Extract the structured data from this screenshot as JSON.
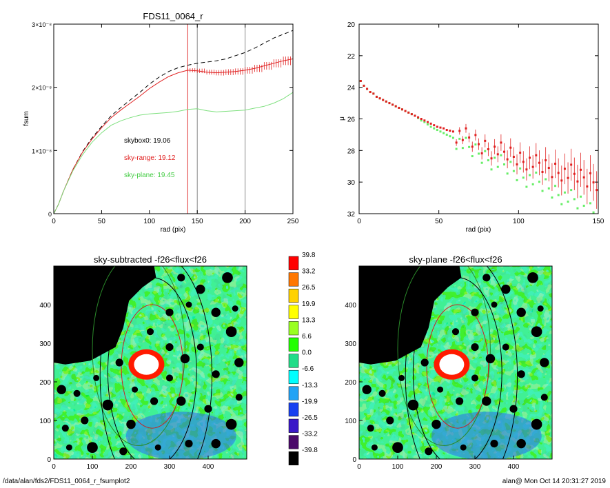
{
  "footer": {
    "path": "/data/alan/fds2/FDS11_0064_r_fsumplot2",
    "stamp": "alan@  Mon Oct 14 20:31:27 2019"
  },
  "colorbar": {
    "labels": [
      "39.8",
      "33.2",
      "26.5",
      "19.9",
      "13.3",
      "6.6",
      "0.0",
      "-6.6",
      "-13.3",
      "-19.9",
      "-26.5",
      "-33.2",
      "-39.8"
    ],
    "colors": [
      "#ff0000",
      "#ff7700",
      "#ffd200",
      "#ffff00",
      "#99ff22",
      "#22ff00",
      "#22dd88",
      "#00ffff",
      "#22a3f5",
      "#1840f0",
      "#3a18c8",
      "#4a0a6a",
      "#000000"
    ]
  },
  "chart_data": [
    {
      "type": "line",
      "title": "FDS11_0064_r",
      "xlabel": "rad (pix)",
      "ylabel": "fsum",
      "xlim": [
        0,
        250
      ],
      "ylim": [
        0,
        3e-08
      ],
      "xticks": [
        0,
        50,
        100,
        150,
        200,
        250
      ],
      "ytick_labels": [
        {
          "value": 0,
          "label": "0"
        },
        {
          "value": 1e-08,
          "label": "1×10⁻⁸"
        },
        {
          "value": 2e-08,
          "label": "2×10⁻⁸"
        },
        {
          "value": 3e-08,
          "label": "3×10⁻⁸"
        }
      ],
      "vlines": [
        {
          "x": 140,
          "color": "#e03030"
        },
        {
          "x": 150,
          "color": "#888888"
        },
        {
          "x": 200,
          "color": "#888888"
        }
      ],
      "annotations": [
        {
          "text": "skybox0: 19.06",
          "color": "#000000"
        },
        {
          "text": "sky-range: 19.12",
          "color": "#e02020"
        },
        {
          "text": "sky-plane: 19.45",
          "color": "#44cc44"
        }
      ],
      "series": [
        {
          "color": "#000000",
          "dash": true,
          "x": [
            0,
            5,
            10,
            20,
            30,
            40,
            50,
            60,
            70,
            80,
            90,
            100,
            110,
            120,
            130,
            140,
            150,
            160,
            170,
            180,
            190,
            200,
            210,
            220,
            230,
            240,
            250
          ],
          "y": [
            0,
            1.5e-09,
            3.5e-09,
            7e-09,
            9.8e-09,
            1.2e-08,
            1.38e-08,
            1.55e-08,
            1.68e-08,
            1.8e-08,
            1.92e-08,
            2.05e-08,
            2.16e-08,
            2.25e-08,
            2.31e-08,
            2.35e-08,
            2.38e-08,
            2.4e-08,
            2.42e-08,
            2.45e-08,
            2.5e-08,
            2.55e-08,
            2.62e-08,
            2.7e-08,
            2.78e-08,
            2.84e-08,
            2.9e-08
          ]
        },
        {
          "color": "#e02020",
          "errorbars": true,
          "x": [
            0,
            5,
            10,
            20,
            30,
            40,
            50,
            60,
            70,
            80,
            90,
            100,
            110,
            120,
            130,
            140,
            150,
            160,
            170,
            180,
            190,
            200,
            210,
            220,
            230,
            240,
            250
          ],
          "y": [
            0,
            1.5e-09,
            3.5e-09,
            7e-09,
            9.7e-09,
            1.18e-08,
            1.36e-08,
            1.52e-08,
            1.64e-08,
            1.75e-08,
            1.86e-08,
            1.98e-08,
            2.08e-08,
            2.17e-08,
            2.23e-08,
            2.27e-08,
            2.26e-08,
            2.24e-08,
            2.23e-08,
            2.24e-08,
            2.25e-08,
            2.27e-08,
            2.3e-08,
            2.34e-08,
            2.38e-08,
            2.42e-08,
            2.45e-08
          ]
        },
        {
          "color": "#7ee07e",
          "x": [
            0,
            5,
            10,
            20,
            30,
            40,
            50,
            60,
            70,
            80,
            90,
            100,
            110,
            120,
            130,
            140,
            150,
            160,
            170,
            180,
            190,
            200,
            210,
            220,
            230,
            240,
            250
          ],
          "y": [
            0,
            1.5e-09,
            3.5e-09,
            6.8e-09,
            9.3e-09,
            1.13e-08,
            1.28e-08,
            1.4e-08,
            1.47e-08,
            1.52e-08,
            1.56e-08,
            1.58e-08,
            1.59e-08,
            1.6e-08,
            1.62e-08,
            1.65e-08,
            1.66e-08,
            1.63e-08,
            1.61e-08,
            1.62e-08,
            1.63e-08,
            1.64e-08,
            1.67e-08,
            1.7e-08,
            1.75e-08,
            1.82e-08,
            1.92e-08
          ]
        }
      ]
    },
    {
      "type": "scatter",
      "xlabel": "rad (pix)",
      "ylabel": "μ",
      "xlim": [
        0,
        150
      ],
      "ylim": [
        32,
        20
      ],
      "xticks": [
        0,
        50,
        100,
        150
      ],
      "yticks": [
        20,
        22,
        24,
        26,
        28,
        30,
        32
      ],
      "series": [
        {
          "color": "#e02020",
          "errorbars": true,
          "x": [
            1,
            3,
            5,
            7,
            9,
            11,
            13,
            15,
            17,
            19,
            21,
            23,
            25,
            27,
            29,
            31,
            33,
            35,
            37,
            39,
            41,
            43,
            45,
            47,
            49,
            51,
            53,
            55,
            57,
            59,
            61,
            63,
            65,
            67,
            69,
            71,
            73,
            75,
            77,
            79,
            81,
            83,
            85,
            87,
            89,
            91,
            93,
            95,
            97,
            99,
            101,
            103,
            105,
            107,
            109,
            111,
            113,
            115,
            117,
            119,
            121,
            123,
            125,
            127,
            129,
            131,
            133,
            135,
            137,
            139,
            141,
            143,
            145,
            147,
            149
          ],
          "y": [
            23.6,
            23.9,
            24.1,
            24.3,
            24.4,
            24.6,
            24.7,
            24.8,
            24.9,
            25.0,
            25.1,
            25.2,
            25.3,
            25.4,
            25.5,
            25.6,
            25.7,
            25.8,
            25.9,
            26.0,
            26.1,
            26.2,
            26.3,
            26.4,
            26.5,
            26.55,
            26.6,
            26.7,
            26.75,
            26.8,
            26.9,
            27.0,
            27.1,
            27.2,
            27.3,
            27.4,
            27.5,
            27.6,
            27.7,
            27.75,
            27.8,
            27.9,
            28.0,
            28.0,
            28.1,
            28.2,
            28.2,
            28.3,
            28.4,
            28.4,
            28.5,
            28.6,
            28.6,
            28.7,
            28.8,
            28.9,
            28.9,
            29.0,
            29.1,
            29.1,
            29.2,
            29.2,
            29.3,
            29.3,
            29.4,
            29.5,
            29.5,
            29.6,
            29.6,
            29.7,
            29.7,
            29.8,
            29.8,
            29.9,
            29.9
          ]
        },
        {
          "color": "#66ee66",
          "x": [
            1,
            3,
            5,
            7,
            9,
            11,
            13,
            15,
            17,
            19,
            21,
            23,
            25,
            27,
            29,
            31,
            33,
            35,
            37,
            39,
            41,
            43,
            45,
            47,
            49,
            51,
            53,
            55,
            57,
            59,
            61,
            63,
            65,
            67,
            69,
            71,
            73,
            75,
            77,
            79,
            81,
            83,
            85,
            87,
            89,
            91,
            93,
            95,
            97,
            99,
            101,
            103,
            105,
            107,
            109,
            111,
            113,
            115,
            117,
            119,
            121,
            123,
            125,
            127,
            129,
            131,
            133,
            135,
            137,
            139,
            141,
            143,
            145,
            147,
            149
          ],
          "y": [
            23.6,
            23.9,
            24.1,
            24.3,
            24.4,
            24.6,
            24.7,
            24.8,
            24.9,
            25.0,
            25.1,
            25.2,
            25.3,
            25.4,
            25.5,
            25.6,
            25.7,
            25.8,
            25.95,
            26.1,
            26.2,
            26.35,
            26.5,
            26.6,
            26.7,
            26.8,
            26.9,
            27.0,
            27.1,
            27.2,
            27.3,
            27.5,
            27.6,
            27.8,
            27.9,
            28.0,
            28.1,
            28.2,
            28.3,
            28.4,
            28.5,
            28.6,
            28.7,
            28.8,
            28.9,
            29.0,
            29.1,
            29.2,
            29.3,
            29.4,
            29.5,
            29.6,
            29.7,
            29.8,
            29.9,
            30.0,
            30.1,
            30.2,
            30.3,
            30.4,
            30.5,
            30.6,
            30.7,
            30.8,
            30.9,
            31.0,
            31.1,
            31.2,
            31.3,
            31.4,
            31.5,
            31.6,
            31.7,
            31.8,
            31.9
          ]
        }
      ]
    },
    {
      "type": "heatmap",
      "title": "sky-subtracted -f26<flux<f26",
      "xlim": [
        0,
        500
      ],
      "ylim": [
        0,
        500
      ],
      "xticks": [
        0,
        100,
        200,
        300,
        400
      ],
      "yticks": [
        0,
        100,
        200,
        300,
        400
      ]
    },
    {
      "type": "heatmap",
      "title": "sky-plane -f26<flux<f26",
      "xlim": [
        0,
        500
      ],
      "ylim": [
        0,
        500
      ],
      "xticks": [
        0,
        100,
        200,
        300,
        400
      ],
      "yticks": [
        0,
        100,
        200,
        300,
        400
      ]
    }
  ]
}
